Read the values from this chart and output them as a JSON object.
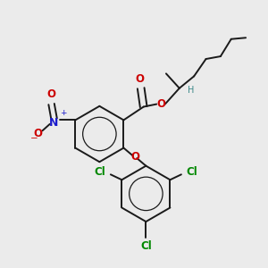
{
  "bg_color": "#ebebeb",
  "bond_color": "#1a1a1a",
  "bond_lw": 1.4,
  "colors": {
    "O": "#cc0000",
    "N": "#1a1acc",
    "Cl": "#008800",
    "H": "#3a8888",
    "C": "#1a1a1a"
  },
  "font_size": 8.5,
  "r1cx": 0.37,
  "r1cy": 0.5,
  "r1": 0.105,
  "r2cx": 0.545,
  "r2cy": 0.275,
  "r2": 0.105
}
